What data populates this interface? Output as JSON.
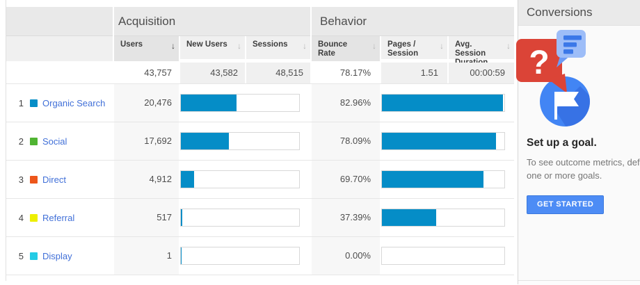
{
  "colors": {
    "bar": "#058dc7",
    "link": "#4170d8",
    "button_background": "#4d8cf5",
    "button_border": "#3a78dd",
    "illustration_red": "#db4437",
    "illustration_blue": "#4285f4",
    "illustration_light_blue": "#9dbdf8"
  },
  "table": {
    "groups": [
      {
        "label": "Acquisition"
      },
      {
        "label": "Behavior"
      }
    ],
    "columns": [
      {
        "label": "Users",
        "sorted": true
      },
      {
        "label": "New Users"
      },
      {
        "label": "Sessions"
      },
      {
        "label": "Bounce Rate"
      },
      {
        "label": "Pages / Session"
      },
      {
        "label": "Avg. Session Duration"
      }
    ],
    "totals": {
      "users": "43,757",
      "new_users": "43,582",
      "sessions": "48,515",
      "bounce_rate": "78.17%",
      "pages_session": "1.51",
      "avg_session_duration": "00:00:59"
    },
    "rows": [
      {
        "index": "1",
        "channel": "Organic Search",
        "color": "#058dc7",
        "users": "20,476",
        "users_bar_pct": 46.8,
        "bounce_rate": "82.96%",
        "bounce_bar_pct": 98.8
      },
      {
        "index": "2",
        "channel": "Social",
        "color": "#50b432",
        "users": "17,692",
        "users_bar_pct": 40.4,
        "bounce_rate": "78.09%",
        "bounce_bar_pct": 93.0
      },
      {
        "index": "3",
        "channel": "Direct",
        "color": "#ed561b",
        "users": "4,912",
        "users_bar_pct": 11.2,
        "bounce_rate": "69.70%",
        "bounce_bar_pct": 83.0
      },
      {
        "index": "4",
        "channel": "Referral",
        "color": "#edef00",
        "users": "517",
        "users_bar_pct": 1.2,
        "bounce_rate": "37.39%",
        "bounce_bar_pct": 44.5
      },
      {
        "index": "5",
        "channel": "Display",
        "color": "#24cbe5",
        "users": "1",
        "users_bar_pct": 0.3,
        "bounce_rate": "0.00%",
        "bounce_bar_pct": 0
      }
    ]
  },
  "panel": {
    "title": "Conversions",
    "goal_title": "Set up a goal.",
    "description_lines": [
      "To see outcome metrics, define",
      "one or more goals."
    ],
    "button_label": "GET STARTED"
  }
}
